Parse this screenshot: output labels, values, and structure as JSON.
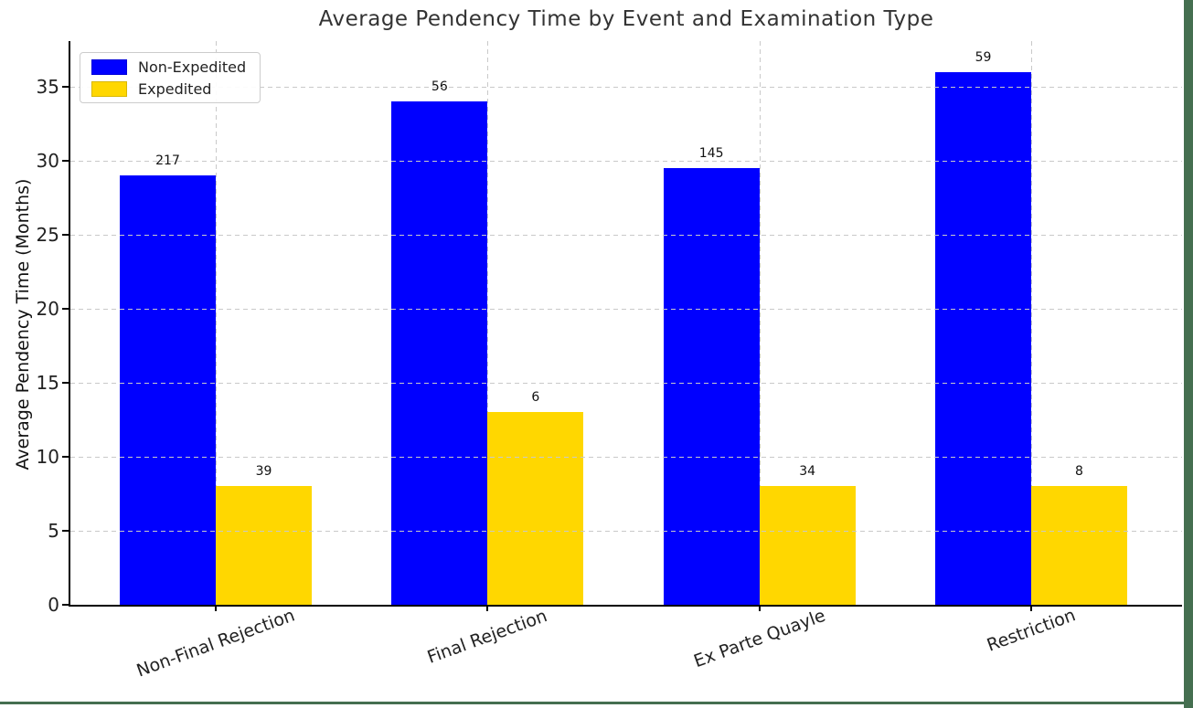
{
  "frame": {
    "border_color": "#456f50"
  },
  "chart_data": {
    "type": "bar",
    "title": "Average Pendency Time by Event and Examination Type",
    "xlabel": "",
    "ylabel": "Average Pendency Time (Months)",
    "categories": [
      "Non-Final Rejection",
      "Final Rejection",
      "Ex Parte Quayle",
      "Restriction"
    ],
    "series": [
      {
        "name": "Non-Expedited",
        "color": "#0000ff",
        "values": [
          29,
          34,
          29.5,
          36
        ],
        "bar_labels": [
          "217",
          "56",
          "145",
          "59"
        ]
      },
      {
        "name": "Expedited",
        "color": "#ffd700",
        "values": [
          8,
          13,
          8,
          8
        ],
        "bar_labels": [
          "39",
          "6",
          "34",
          "8"
        ]
      }
    ],
    "yticks": [
      0,
      5,
      10,
      15,
      20,
      25,
      30,
      35
    ],
    "ylim": [
      0,
      38
    ],
    "grid": "dashed-both-axes",
    "grid_over_bars": true,
    "legend_position": "upper-left",
    "xtick_rotation_deg": 20
  }
}
